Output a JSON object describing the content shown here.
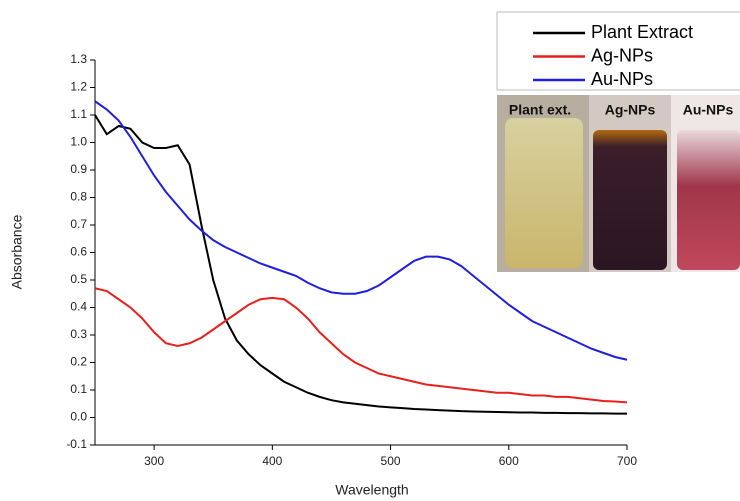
{
  "chart_data": {
    "type": "line",
    "x_label": "Wavelength",
    "y_label": "Absorbance",
    "x": [
      250,
      260,
      270,
      280,
      290,
      300,
      310,
      320,
      330,
      340,
      350,
      360,
      370,
      380,
      390,
      400,
      410,
      420,
      430,
      440,
      450,
      460,
      470,
      480,
      490,
      500,
      510,
      520,
      530,
      540,
      550,
      560,
      570,
      580,
      590,
      600,
      610,
      620,
      630,
      640,
      650,
      660,
      670,
      680,
      690,
      700
    ],
    "series": [
      {
        "name": "Plant Extract",
        "color": "#000000",
        "values": [
          1.1,
          1.03,
          1.06,
          1.05,
          1.0,
          0.98,
          0.98,
          0.99,
          0.92,
          0.7,
          0.5,
          0.36,
          0.28,
          0.23,
          0.19,
          0.16,
          0.13,
          0.11,
          0.09,
          0.075,
          0.063,
          0.055,
          0.05,
          0.045,
          0.04,
          0.037,
          0.034,
          0.031,
          0.029,
          0.027,
          0.025,
          0.023,
          0.022,
          0.021,
          0.02,
          0.019,
          0.018,
          0.018,
          0.017,
          0.017,
          0.016,
          0.016,
          0.015,
          0.015,
          0.014,
          0.014
        ]
      },
      {
        "name": "Ag-NPs",
        "color": "#e8211d",
        "values": [
          0.47,
          0.46,
          0.43,
          0.4,
          0.36,
          0.31,
          0.27,
          0.26,
          0.27,
          0.29,
          0.32,
          0.35,
          0.38,
          0.41,
          0.43,
          0.435,
          0.43,
          0.4,
          0.36,
          0.31,
          0.27,
          0.23,
          0.2,
          0.18,
          0.16,
          0.15,
          0.14,
          0.13,
          0.12,
          0.115,
          0.11,
          0.105,
          0.1,
          0.095,
          0.09,
          0.09,
          0.085,
          0.08,
          0.08,
          0.075,
          0.075,
          0.07,
          0.065,
          0.06,
          0.058,
          0.055
        ]
      },
      {
        "name": "Au-NPs",
        "color": "#1f1fe0",
        "values": [
          1.15,
          1.12,
          1.08,
          1.02,
          0.95,
          0.88,
          0.82,
          0.77,
          0.72,
          0.68,
          0.645,
          0.62,
          0.6,
          0.58,
          0.56,
          0.545,
          0.53,
          0.515,
          0.49,
          0.47,
          0.455,
          0.45,
          0.45,
          0.46,
          0.48,
          0.51,
          0.54,
          0.57,
          0.585,
          0.585,
          0.575,
          0.55,
          0.515,
          0.48,
          0.445,
          0.41,
          0.38,
          0.35,
          0.33,
          0.31,
          0.29,
          0.27,
          0.25,
          0.235,
          0.22,
          0.21
        ]
      }
    ],
    "xlim": [
      250,
      700
    ],
    "xticks": [
      300,
      400,
      500,
      600,
      700
    ],
    "ylim": [
      -0.1,
      1.3
    ],
    "yticks": [
      -0.1,
      {
        "value": 0,
        "label": "0.0"
      },
      0.1,
      0.2,
      0.3,
      0.4,
      0.5,
      0.6,
      0.7,
      0.8,
      0.9,
      {
        "value": 1,
        "label": "1.0"
      },
      1.1,
      1.2,
      1.3
    ],
    "inset_labels": [
      "Plant ext.",
      "Ag-NPs",
      "Au-NPs"
    ]
  }
}
